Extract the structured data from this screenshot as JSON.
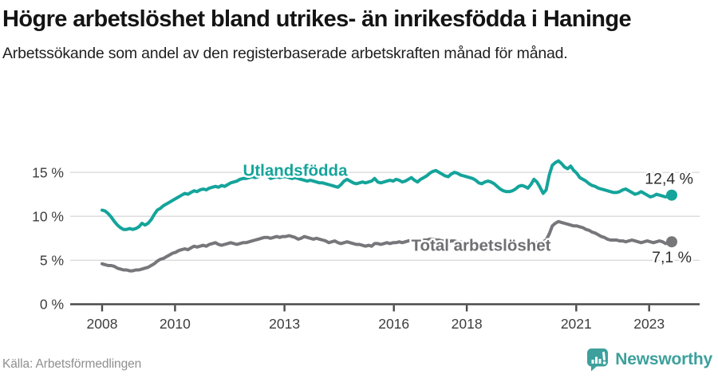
{
  "header": {
    "title": "Högre arbetslöshet bland utrikes- än inrikesfödda i Haninge",
    "subtitle": "Arbetssökande som andel av den registerbaserade arbetskraften månad för månad."
  },
  "footer": {
    "source": "Källa: Arbetsförmedlingen",
    "brand": "Newsworthy"
  },
  "colors": {
    "foreign_born_line": "#14a49b",
    "total_line": "#77777b",
    "axis": "#4a4a4a",
    "gridline": "#d8d8d8",
    "brand_teal": "#3da09c"
  },
  "chart_data": {
    "type": "line",
    "title": "Högre arbetslöshet bland utrikes- än inrikesfödda i Haninge",
    "subtitle": "Arbetssökande som andel av den registerbaserade arbetskraften månad för månad.",
    "unit": "%",
    "frequency": "monthly",
    "x_start": "2008-01",
    "x_end": "2023-07",
    "ylim": [
      0,
      16.5
    ],
    "grid": "horizontal",
    "legend_position": "inline-labels",
    "yticks": [
      0,
      5,
      10,
      15
    ],
    "ytick_labels": [
      "0 %",
      "5 %",
      "10 %",
      "15 %"
    ],
    "xticks": [
      2008,
      2010,
      2013,
      2016,
      2018,
      2021,
      2023
    ],
    "xtick_labels": [
      "2008",
      "2010",
      "2013",
      "2016",
      "2018",
      "2021",
      "2023"
    ],
    "series": [
      {
        "name": "Utlandsfödda",
        "color": "#14a49b",
        "end_label": "12,4 %",
        "end_value": 12.4,
        "values": [
          10.7,
          10.6,
          10.3,
          9.9,
          9.4,
          9.0,
          8.7,
          8.5,
          8.5,
          8.6,
          8.5,
          8.6,
          8.8,
          9.2,
          9.0,
          9.2,
          9.6,
          10.2,
          10.7,
          10.9,
          11.2,
          11.4,
          11.6,
          11.8,
          12.0,
          12.2,
          12.4,
          12.6,
          12.5,
          12.7,
          12.9,
          12.8,
          13.0,
          13.1,
          13.0,
          13.2,
          13.3,
          13.4,
          13.3,
          13.5,
          13.4,
          13.6,
          13.8,
          13.9,
          14.0,
          14.2,
          14.3,
          14.3,
          14.4,
          14.5,
          14.4,
          14.5,
          14.6,
          14.8,
          14.6,
          14.3,
          14.4,
          14.5,
          14.4,
          14.5,
          14.5,
          14.4,
          14.3,
          14.4,
          14.3,
          14.2,
          14.1,
          14.0,
          14.1,
          14.0,
          13.9,
          13.8,
          13.8,
          13.7,
          13.6,
          13.5,
          13.4,
          13.3,
          13.6,
          14.0,
          14.2,
          14.0,
          13.8,
          13.7,
          13.8,
          13.9,
          13.8,
          13.9,
          14.0,
          14.3,
          13.9,
          13.8,
          13.9,
          14.0,
          14.1,
          14.0,
          14.2,
          14.1,
          13.9,
          14.0,
          14.2,
          14.4,
          14.1,
          13.9,
          14.2,
          14.4,
          14.6,
          14.9,
          15.1,
          15.2,
          15.0,
          14.8,
          14.6,
          14.5,
          14.8,
          15.0,
          14.9,
          14.7,
          14.6,
          14.5,
          14.4,
          14.3,
          14.1,
          13.8,
          13.7,
          13.9,
          14.0,
          13.9,
          13.7,
          13.4,
          13.1,
          12.9,
          12.8,
          12.8,
          12.9,
          13.1,
          13.4,
          13.5,
          13.4,
          13.2,
          13.6,
          14.2,
          13.9,
          13.3,
          12.6,
          13.0,
          14.7,
          15.8,
          16.1,
          16.3,
          16.0,
          15.6,
          15.4,
          15.7,
          15.2,
          14.9,
          14.4,
          14.2,
          14.0,
          13.7,
          13.5,
          13.4,
          13.2,
          13.1,
          13.0,
          12.9,
          12.8,
          12.7,
          12.7,
          12.8,
          13.0,
          13.1,
          12.9,
          12.7,
          12.5,
          12.6,
          12.8,
          12.6,
          12.4,
          12.2,
          12.3,
          12.5,
          12.4,
          12.3,
          12.2,
          12.3,
          12.4
        ]
      },
      {
        "name": "Total arbetslöshet",
        "color": "#77777b",
        "end_label": "7,1 %",
        "end_value": 7.1,
        "values": [
          4.6,
          4.5,
          4.4,
          4.4,
          4.3,
          4.1,
          4.0,
          3.9,
          3.9,
          3.8,
          3.8,
          3.9,
          3.9,
          4.0,
          4.1,
          4.2,
          4.4,
          4.6,
          4.9,
          5.1,
          5.2,
          5.4,
          5.6,
          5.8,
          5.9,
          6.1,
          6.2,
          6.3,
          6.2,
          6.4,
          6.6,
          6.5,
          6.6,
          6.7,
          6.6,
          6.8,
          6.9,
          7.0,
          6.8,
          6.7,
          6.8,
          6.9,
          7.0,
          6.9,
          6.8,
          6.9,
          7.0,
          7.0,
          7.1,
          7.2,
          7.3,
          7.4,
          7.5,
          7.6,
          7.6,
          7.5,
          7.6,
          7.7,
          7.6,
          7.7,
          7.7,
          7.8,
          7.7,
          7.6,
          7.4,
          7.5,
          7.7,
          7.6,
          7.5,
          7.4,
          7.5,
          7.4,
          7.3,
          7.2,
          7.0,
          7.1,
          7.2,
          7.0,
          6.9,
          7.0,
          7.1,
          7.0,
          6.9,
          6.8,
          6.8,
          6.7,
          6.6,
          6.7,
          6.6,
          6.9,
          6.9,
          6.8,
          6.9,
          7.0,
          6.9,
          7.0,
          7.0,
          7.1,
          7.0,
          7.1,
          7.2,
          7.3,
          7.2,
          7.1,
          7.2,
          7.3,
          7.3,
          7.4,
          7.4,
          7.3,
          7.3,
          7.2,
          7.2,
          7.1,
          7.2,
          7.2,
          7.1,
          7.1,
          7.0,
          7.0,
          7.0,
          6.9,
          6.9,
          6.8,
          6.8,
          6.7,
          6.7,
          6.6,
          6.6,
          6.5,
          6.5,
          6.5,
          6.5,
          6.5,
          6.6,
          6.6,
          6.7,
          6.7,
          6.8,
          6.8,
          6.9,
          6.9,
          7.0,
          7.0,
          7.1,
          7.3,
          8.0,
          8.9,
          9.2,
          9.4,
          9.3,
          9.2,
          9.1,
          9.0,
          8.9,
          8.9,
          8.8,
          8.7,
          8.5,
          8.4,
          8.2,
          8.1,
          7.9,
          7.7,
          7.6,
          7.4,
          7.3,
          7.3,
          7.3,
          7.2,
          7.2,
          7.1,
          7.2,
          7.3,
          7.2,
          7.1,
          7.0,
          7.1,
          7.2,
          7.1,
          7.0,
          7.1,
          7.2,
          7.1,
          6.9,
          7.0,
          7.1
        ]
      }
    ]
  }
}
